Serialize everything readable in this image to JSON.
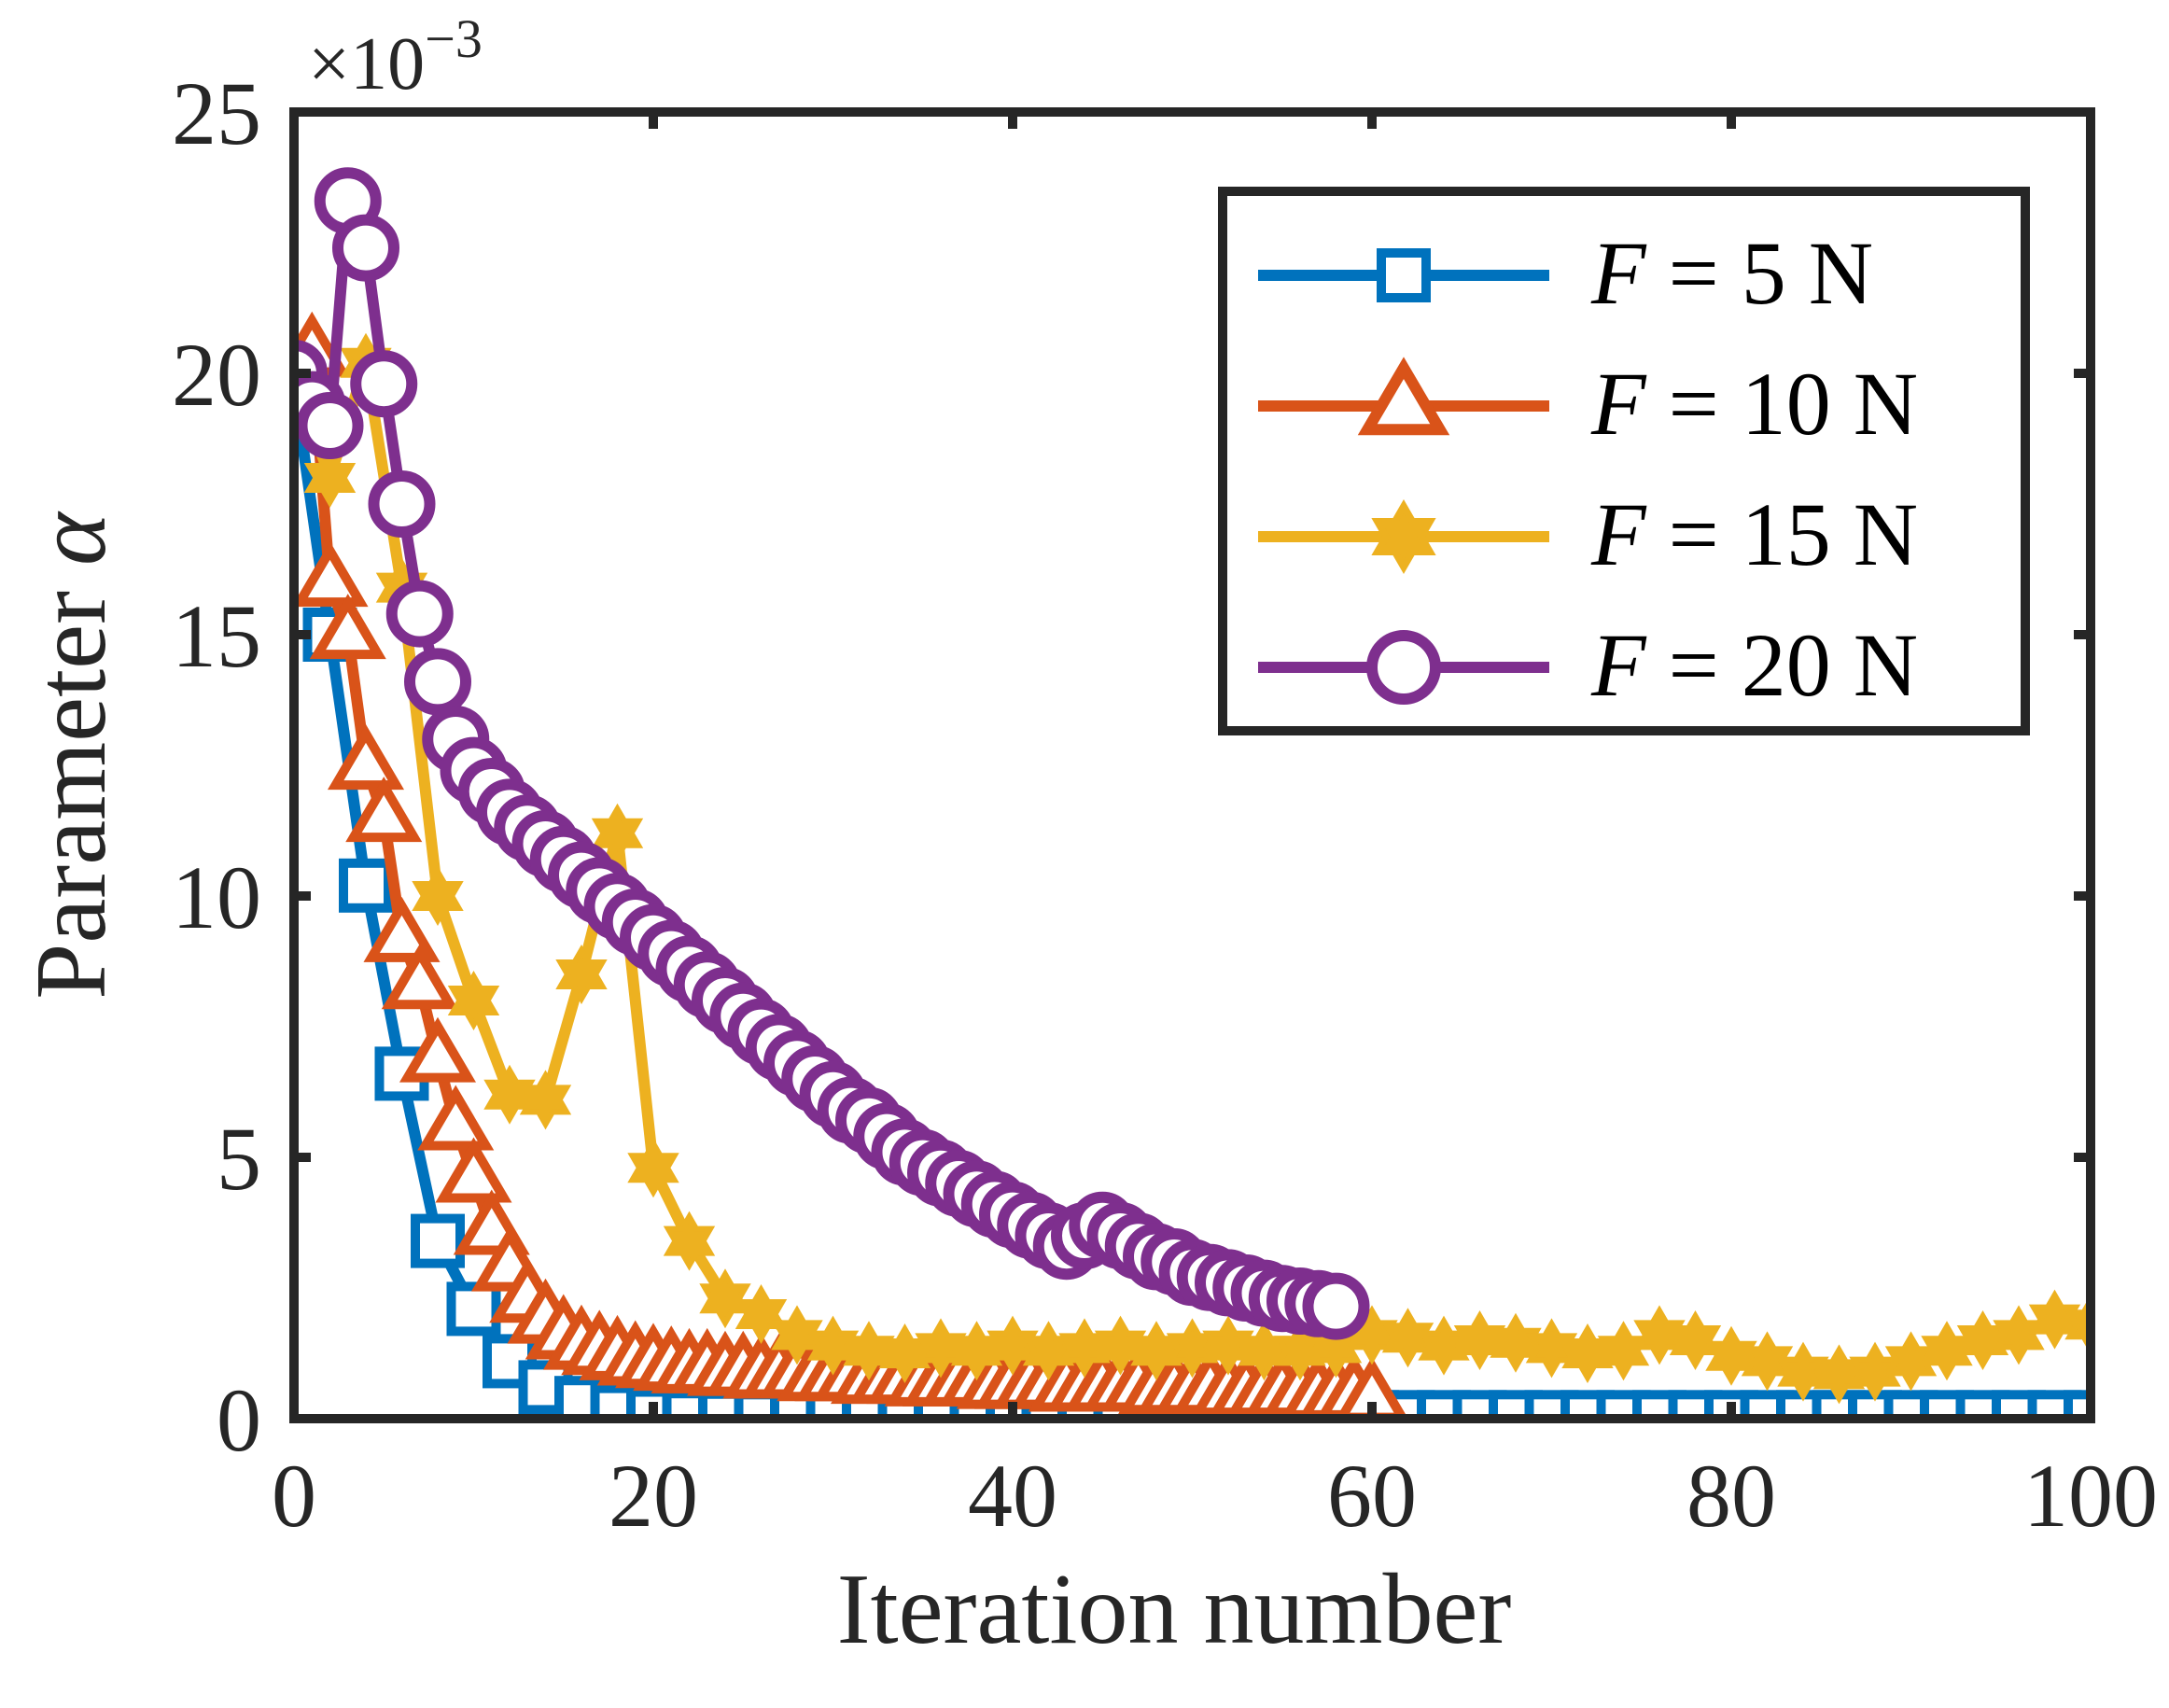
{
  "chart_data": {
    "type": "line",
    "xlabel": "Iteration number",
    "ylabel_prefix": "Parameter",
    "ylabel_symbol": "α",
    "exponent_base": "×10",
    "exponent_power": "−3",
    "xlim": [
      0,
      100
    ],
    "ylim": [
      0,
      25
    ],
    "xticks": [
      0,
      20,
      40,
      60,
      80,
      100
    ],
    "yticks": [
      0,
      5,
      10,
      15,
      20,
      25
    ],
    "xtick_labels": [
      "0",
      "20",
      "40",
      "60",
      "80",
      "100"
    ],
    "ytick_labels": [
      "0",
      "5",
      "10",
      "15",
      "20",
      "25"
    ],
    "grid": false,
    "legend_position": "top-right",
    "series": [
      {
        "name": "F = 5 N",
        "legend_symbol": "F",
        "legend_rest": " = 5 N",
        "color": "#0072BD",
        "marker": "square",
        "x": [
          0,
          2,
          4,
          6,
          8,
          10,
          12,
          14,
          16,
          18,
          20,
          22,
          24,
          26,
          28,
          30,
          32,
          34,
          36,
          38,
          40,
          42,
          44,
          46,
          48,
          50,
          52,
          54,
          56,
          58,
          60,
          62,
          64,
          66,
          68,
          70,
          72,
          74,
          76,
          78,
          80,
          82,
          84,
          86,
          88,
          90,
          92,
          94,
          96,
          98,
          100
        ],
        "y": [
          19.8,
          15.0,
          10.2,
          6.6,
          3.4,
          2.1,
          1.1,
          0.6,
          0.3,
          0.15,
          0.08,
          0.05,
          0.04,
          0.03,
          0.03,
          0.03,
          0.03,
          0.03,
          0.03,
          0.03,
          0.03,
          0.03,
          0.03,
          0.03,
          0.03,
          0.03,
          0.03,
          0.03,
          0.03,
          0.03,
          0.03,
          0.03,
          0.03,
          0.03,
          0.03,
          0.03,
          0.03,
          0.03,
          0.03,
          0.03,
          0.03,
          0.03,
          0.03,
          0.03,
          0.03,
          0.03,
          0.03,
          0.03,
          0.03,
          0.03,
          0.03
        ]
      },
      {
        "name": "F = 10 N",
        "legend_symbol": "F",
        "legend_rest": " = 10 N",
        "color": "#D95319",
        "marker": "triangle",
        "x": [
          0,
          1,
          2,
          3,
          4,
          5,
          6,
          7,
          8,
          9,
          10,
          11,
          12,
          13,
          14,
          15,
          16,
          17,
          18,
          19,
          20,
          21,
          22,
          23,
          24,
          25,
          26,
          27,
          28,
          29,
          30,
          31,
          32,
          33,
          34,
          35,
          36,
          37,
          38,
          39,
          40,
          41,
          42,
          43,
          44,
          45,
          46,
          47,
          48,
          49,
          50,
          51,
          52,
          53,
          54,
          55,
          56,
          57,
          58,
          59,
          60
        ],
        "y": [
          19.9,
          20.4,
          16.0,
          15.0,
          12.5,
          11.5,
          9.2,
          8.3,
          6.9,
          5.6,
          4.6,
          3.6,
          2.9,
          2.3,
          1.9,
          1.6,
          1.4,
          1.3,
          1.2,
          1.1,
          1.05,
          1.0,
          0.95,
          0.95,
          0.9,
          0.9,
          0.85,
          0.85,
          0.85,
          0.8,
          0.8,
          0.8,
          0.75,
          0.75,
          0.75,
          0.7,
          0.7,
          0.7,
          0.7,
          0.65,
          0.65,
          0.65,
          0.65,
          0.6,
          0.6,
          0.6,
          0.6,
          0.6,
          0.55,
          0.55,
          0.55,
          0.55,
          0.5,
          0.5,
          0.5,
          0.5,
          0.5,
          0.45,
          0.45,
          0.45,
          0.4
        ]
      },
      {
        "name": "F = 15 N",
        "legend_symbol": "F",
        "legend_rest": " = 15 N",
        "color": "#EDB120",
        "marker": "hexagram",
        "x": [
          0,
          2,
          4,
          6,
          8,
          10,
          12,
          14,
          16,
          18,
          20,
          22,
          24,
          26,
          28,
          30,
          32,
          34,
          36,
          38,
          40,
          42,
          44,
          46,
          48,
          50,
          52,
          54,
          56,
          58,
          60,
          62,
          64,
          66,
          68,
          70,
          72,
          74,
          76,
          78,
          80,
          82,
          84,
          86,
          88,
          90,
          92,
          94,
          96,
          98,
          100
        ],
        "y": [
          20.0,
          18.0,
          20.2,
          15.9,
          10.0,
          8.0,
          6.2,
          6.1,
          8.5,
          11.2,
          4.8,
          3.4,
          2.3,
          2.0,
          1.6,
          1.4,
          1.3,
          1.25,
          1.35,
          1.3,
          1.4,
          1.3,
          1.35,
          1.4,
          1.3,
          1.35,
          1.4,
          1.3,
          1.3,
          1.35,
          1.6,
          1.55,
          1.4,
          1.5,
          1.45,
          1.35,
          1.25,
          1.3,
          1.6,
          1.5,
          1.2,
          1.1,
          0.9,
          0.85,
          0.9,
          1.1,
          1.3,
          1.5,
          1.6,
          1.9,
          1.8
        ]
      },
      {
        "name": "F = 20 N",
        "legend_symbol": "F",
        "legend_rest": " = 20 N",
        "color": "#7E2F8E",
        "marker": "circle",
        "x": [
          0,
          1,
          2,
          3,
          4,
          5,
          6,
          7,
          8,
          9,
          10,
          11,
          12,
          13,
          14,
          15,
          16,
          17,
          18,
          19,
          20,
          21,
          22,
          23,
          24,
          25,
          26,
          27,
          28,
          29,
          30,
          31,
          32,
          33,
          34,
          35,
          36,
          37,
          38,
          39,
          40,
          41,
          42,
          43,
          44,
          45,
          46,
          47,
          48,
          49,
          50,
          51,
          52,
          53,
          54,
          55,
          56,
          57,
          58
        ],
        "y": [
          20.0,
          19.4,
          19.0,
          23.3,
          22.4,
          19.8,
          17.5,
          15.4,
          14.1,
          13.0,
          12.4,
          12.0,
          11.6,
          11.3,
          11.0,
          10.7,
          10.4,
          10.1,
          9.8,
          9.5,
          9.2,
          8.9,
          8.6,
          8.3,
          8.0,
          7.7,
          7.4,
          7.1,
          6.8,
          6.5,
          6.2,
          5.9,
          5.7,
          5.4,
          5.1,
          4.9,
          4.7,
          4.5,
          4.3,
          4.1,
          3.9,
          3.7,
          3.5,
          3.3,
          3.5,
          3.7,
          3.5,
          3.3,
          3.1,
          3.0,
          2.8,
          2.7,
          2.6,
          2.5,
          2.4,
          2.3,
          2.25,
          2.2,
          2.15
        ]
      }
    ]
  }
}
